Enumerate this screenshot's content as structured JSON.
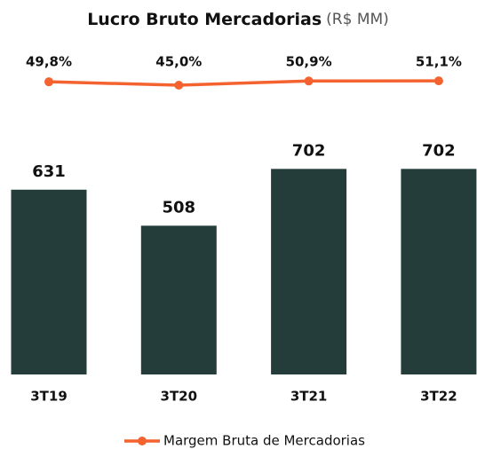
{
  "chart_data": {
    "type": "bar",
    "title": "Lucro Bruto Mercadorias",
    "subtitle": "(R$ MM)",
    "categories": [
      "3T19",
      "3T20",
      "3T21",
      "3T22"
    ],
    "values": [
      631,
      508,
      702,
      702
    ],
    "color": "#243d3a",
    "ylim": [
      0,
      1000
    ],
    "series": [
      {
        "name": "Margem Bruta de Mercadorias",
        "color": "#f4622f",
        "type": "line",
        "axis": "y2",
        "values": [
          49.8,
          45.0,
          50.9,
          51.1
        ],
        "value_labels": [
          "49,8%",
          "45,0%",
          "50,9%",
          "51,1%"
        ]
      }
    ],
    "y2lim": [
      0,
      100
    ],
    "legend": "bottom"
  }
}
